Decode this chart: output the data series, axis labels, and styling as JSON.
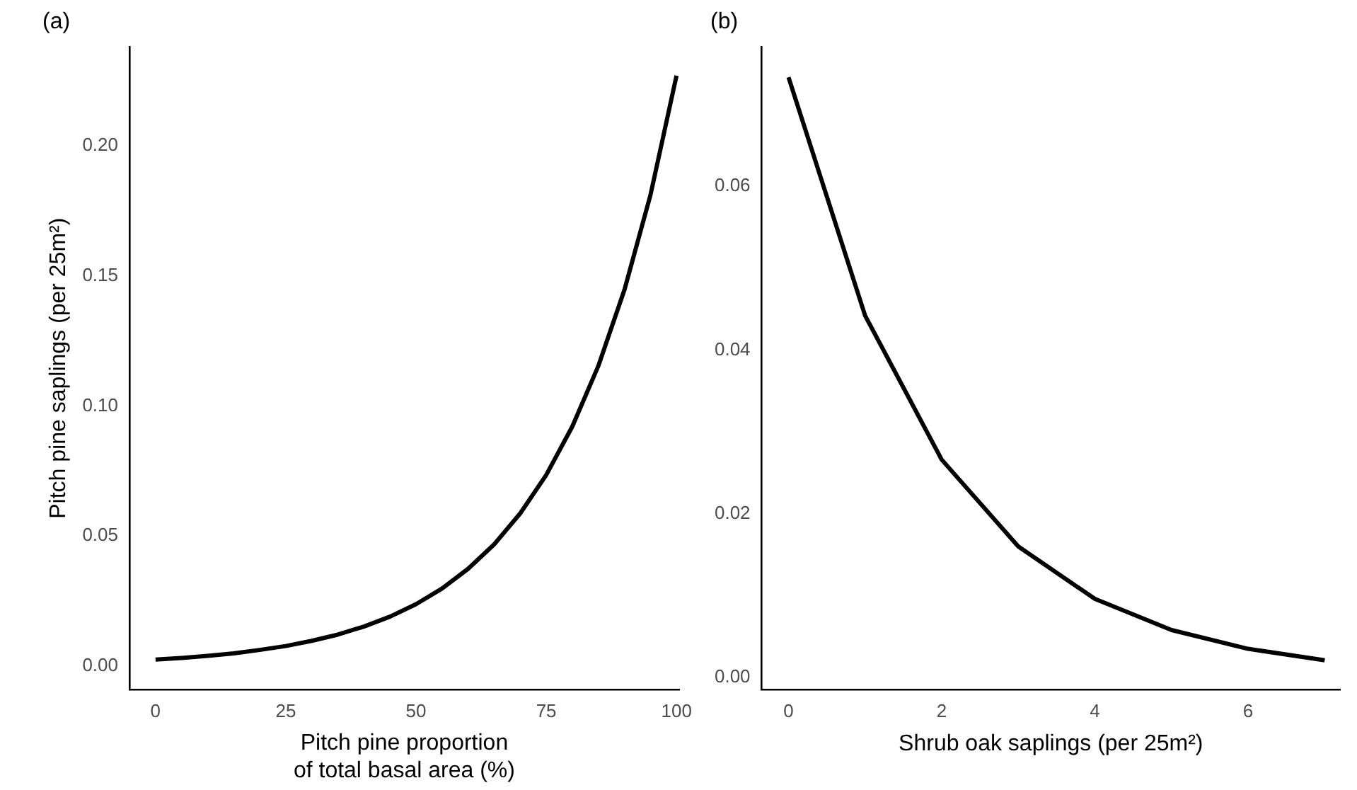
{
  "chart_data": [
    {
      "type": "line",
      "title": "(a)",
      "xlabel": "Pitch pine proportion\nof total basal area (%)",
      "ylabel": "Pitch pine saplings (per 25m²)",
      "color": "#000000",
      "x": [
        0,
        5,
        10,
        15,
        20,
        25,
        30,
        35,
        40,
        45,
        50,
        55,
        60,
        65,
        70,
        75,
        80,
        85,
        90,
        95,
        100
      ],
      "values": [
        0.0025,
        0.0031,
        0.0039,
        0.0049,
        0.0062,
        0.0077,
        0.0097,
        0.0121,
        0.0152,
        0.019,
        0.0238,
        0.0298,
        0.0374,
        0.0468,
        0.0587,
        0.0735,
        0.0921,
        0.1154,
        0.1446,
        0.1811,
        0.227
      ],
      "xlim": [
        -5,
        100.5
      ],
      "ylim": [
        -0.009,
        0.238
      ],
      "xticks": [
        0,
        25,
        50,
        75,
        100
      ],
      "yticks": [
        {
          "value": 0,
          "label": "0.00"
        },
        {
          "value": 0.05,
          "label": "0.05"
        },
        {
          "value": 0.1,
          "label": "0.10"
        },
        {
          "value": 0.15,
          "label": "0.15"
        },
        {
          "value": 0.2,
          "label": "0.20"
        }
      ]
    },
    {
      "type": "line",
      "title": "(b)",
      "xlabel": "Shrub oak saplings (per 25m²)",
      "color": "#000000",
      "x": [
        0,
        1,
        2,
        3,
        4,
        5,
        6,
        7
      ],
      "values": [
        0.0733,
        0.0442,
        0.0266,
        0.016,
        0.0096,
        0.0058,
        0.0035,
        0.0021
      ],
      "xlim": [
        -0.35,
        7.2
      ],
      "ylim": [
        -0.0015,
        0.077
      ],
      "xticks": [
        0,
        2,
        4,
        6
      ],
      "yticks": [
        {
          "value": 0,
          "label": "0.00"
        },
        {
          "value": 0.02,
          "label": "0.02"
        },
        {
          "value": 0.04,
          "label": "0.04"
        },
        {
          "value": 0.06,
          "label": "0.06"
        }
      ]
    }
  ]
}
